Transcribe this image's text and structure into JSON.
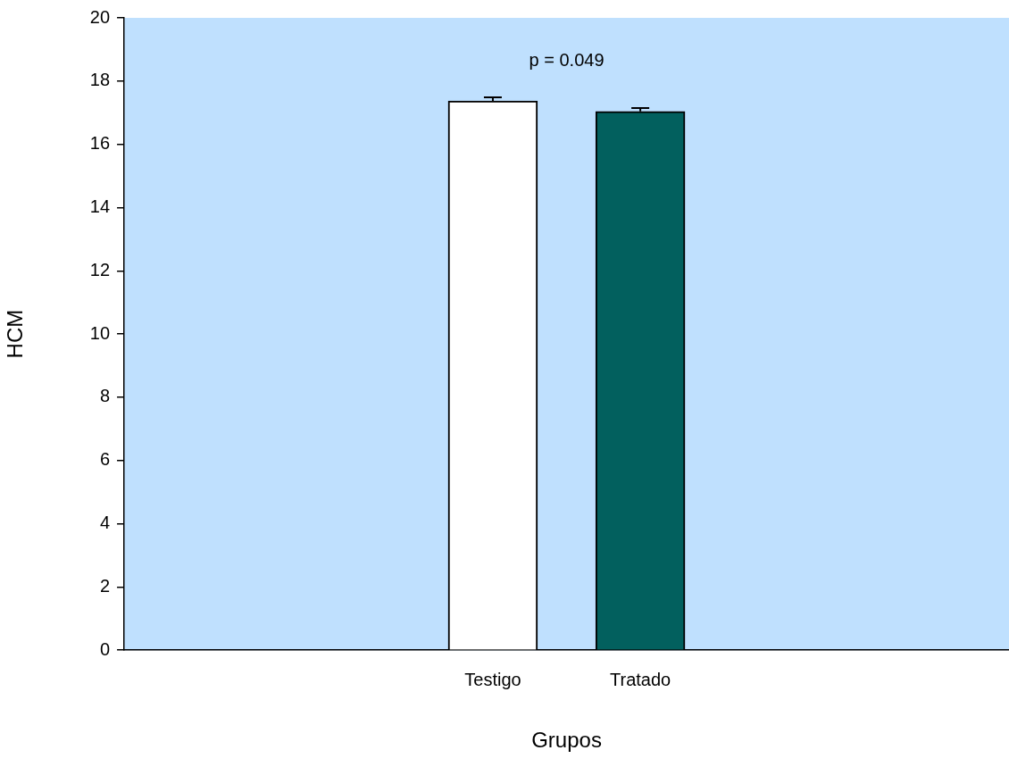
{
  "chart_data": {
    "type": "bar",
    "categories": [
      "Testigo",
      "Tratado"
    ],
    "xlabel": "Grupos",
    "ylabel": "HCM",
    "colors": [
      "#ffffff",
      "#02605e"
    ],
    "values": [
      17.37,
      17.04
    ],
    "errors": [
      [
        17.37,
        17.49
      ],
      [
        17.04,
        17.15
      ]
    ],
    "ylim": [
      0,
      20
    ],
    "yticks": [
      0,
      2,
      4,
      6,
      8,
      10,
      12,
      14,
      16,
      18,
      20
    ],
    "grid": false,
    "annotations": [
      "p = 0.049"
    ]
  }
}
